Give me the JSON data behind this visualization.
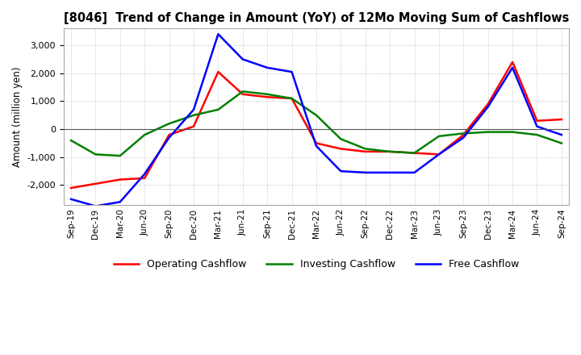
{
  "title": "[8046]  Trend of Change in Amount (YoY) of 12Mo Moving Sum of Cashflows",
  "ylabel": "Amount (million yen)",
  "ylim": [
    -2700,
    3600
  ],
  "yticks": [
    -2000,
    -1000,
    0,
    1000,
    2000,
    3000
  ],
  "x_labels": [
    "Sep-19",
    "Dec-19",
    "Mar-20",
    "Jun-20",
    "Sep-20",
    "Dec-20",
    "Mar-21",
    "Jun-21",
    "Sep-21",
    "Dec-21",
    "Mar-22",
    "Jun-22",
    "Sep-22",
    "Dec-22",
    "Mar-23",
    "Jun-23",
    "Sep-23",
    "Dec-23",
    "Mar-24",
    "Jun-24",
    "Sep-24"
  ],
  "operating": [
    -2100,
    -1950,
    -1800,
    -1750,
    -200,
    100,
    2050,
    1250,
    1150,
    1100,
    -500,
    -700,
    -800,
    -800,
    -850,
    -900,
    -200,
    900,
    2400,
    300,
    350
  ],
  "investing": [
    -400,
    -900,
    -950,
    -200,
    200,
    500,
    700,
    1350,
    1250,
    1100,
    500,
    -350,
    -700,
    -800,
    -850,
    -250,
    -150,
    -100,
    -100,
    -200,
    -500
  ],
  "free": [
    -2500,
    -2750,
    -2600,
    -1600,
    -300,
    700,
    3400,
    2500,
    2200,
    2050,
    -600,
    -1500,
    -1550,
    -1550,
    -1550,
    -900,
    -300,
    800,
    2200,
    100,
    -200
  ],
  "operating_color": "#ff0000",
  "investing_color": "#008000",
  "free_color": "#0000ff",
  "background_color": "#ffffff",
  "grid_color": "#aaaaaa"
}
